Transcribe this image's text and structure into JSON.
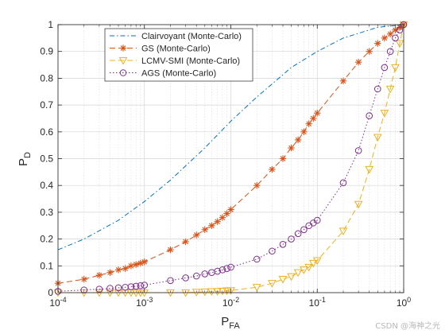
{
  "chart_data": {
    "type": "line",
    "xscale": "log",
    "xlim": [
      0.0001,
      1
    ],
    "ylim": [
      0,
      1
    ],
    "grid": true,
    "legend_position": "top-left",
    "xlabel_main": "P",
    "xlabel_sub": "FA",
    "ylabel_main": "P",
    "ylabel_sub": "D",
    "x_ticks": [
      {
        "value": 0.0001,
        "base": "10",
        "exp": "-4"
      },
      {
        "value": 0.001,
        "base": "10",
        "exp": "-3"
      },
      {
        "value": 0.01,
        "base": "10",
        "exp": "-2"
      },
      {
        "value": 0.1,
        "base": "10",
        "exp": "-1"
      },
      {
        "value": 1,
        "base": "10",
        "exp": "0"
      }
    ],
    "y_ticks": [
      "0",
      "0.1",
      "0.2",
      "0.3",
      "0.4",
      "0.5",
      "0.6",
      "0.7",
      "0.8",
      "0.9",
      "1"
    ],
    "series": [
      {
        "name": "Clairvoyant (Monte-Carlo)",
        "color": "#0072BD",
        "dash": "dashdot",
        "marker": "none",
        "x": [
          0.0001,
          0.0002,
          0.0005,
          0.001,
          0.002,
          0.005,
          0.01,
          0.02,
          0.05,
          0.1,
          0.2,
          0.5,
          1
        ],
        "y": [
          0.16,
          0.2,
          0.27,
          0.34,
          0.42,
          0.54,
          0.64,
          0.73,
          0.84,
          0.9,
          0.95,
          0.99,
          1.0
        ]
      },
      {
        "name": "GS (Monte-Carlo)",
        "color": "#D95319",
        "dash": "dashed",
        "marker": "asterisk",
        "x": [
          0.0001,
          0.0002,
          0.0003,
          0.0004,
          0.0005,
          0.0006,
          0.0007,
          0.0008,
          0.0009,
          0.001,
          0.002,
          0.003,
          0.004,
          0.005,
          0.006,
          0.007,
          0.008,
          0.009,
          0.01,
          0.02,
          0.03,
          0.04,
          0.05,
          0.06,
          0.07,
          0.08,
          0.09,
          0.1,
          0.2,
          0.3,
          0.4,
          0.5,
          0.6,
          0.7,
          0.8,
          0.9,
          1
        ],
        "y": [
          0.035,
          0.05,
          0.065,
          0.075,
          0.085,
          0.09,
          0.1,
          0.105,
          0.11,
          0.115,
          0.16,
          0.19,
          0.215,
          0.235,
          0.25,
          0.265,
          0.28,
          0.295,
          0.31,
          0.4,
          0.46,
          0.5,
          0.54,
          0.57,
          0.6,
          0.63,
          0.65,
          0.67,
          0.79,
          0.86,
          0.9,
          0.93,
          0.95,
          0.965,
          0.98,
          0.99,
          1.0
        ]
      },
      {
        "name": "LCMV-SMI (Monte-Carlo)",
        "color": "#EDB120",
        "dash": "dashed",
        "marker": "triangle-down",
        "x": [
          0.0001,
          0.0002,
          0.0003,
          0.0004,
          0.0005,
          0.0006,
          0.0007,
          0.0008,
          0.0009,
          0.001,
          0.002,
          0.003,
          0.004,
          0.005,
          0.006,
          0.007,
          0.008,
          0.009,
          0.01,
          0.02,
          0.03,
          0.04,
          0.05,
          0.06,
          0.07,
          0.08,
          0.09,
          0.1,
          0.2,
          0.3,
          0.4,
          0.5,
          0.6,
          0.7,
          0.8,
          0.9,
          1
        ],
        "y": [
          0.0,
          0.0,
          0.0,
          0.0,
          0.0,
          0.0,
          0.0,
          0.0,
          0.0,
          0.0,
          0.0,
          0.0,
          0.002,
          0.003,
          0.004,
          0.005,
          0.006,
          0.007,
          0.008,
          0.02,
          0.035,
          0.05,
          0.06,
          0.075,
          0.085,
          0.095,
          0.11,
          0.12,
          0.23,
          0.33,
          0.46,
          0.58,
          0.67,
          0.76,
          0.84,
          0.93,
          1.0
        ]
      },
      {
        "name": "AGS (Monte-Carlo)",
        "color": "#7E2F8E",
        "dash": "dotted",
        "marker": "circle",
        "x": [
          0.0001,
          0.0002,
          0.0003,
          0.0004,
          0.0005,
          0.0006,
          0.0007,
          0.0008,
          0.0009,
          0.001,
          0.002,
          0.003,
          0.004,
          0.005,
          0.006,
          0.007,
          0.008,
          0.009,
          0.01,
          0.02,
          0.03,
          0.04,
          0.05,
          0.06,
          0.07,
          0.08,
          0.09,
          0.1,
          0.2,
          0.3,
          0.4,
          0.5,
          0.6,
          0.7,
          0.8,
          0.9,
          1
        ],
        "y": [
          0.005,
          0.01,
          0.013,
          0.016,
          0.018,
          0.02,
          0.022,
          0.024,
          0.026,
          0.028,
          0.045,
          0.055,
          0.062,
          0.07,
          0.075,
          0.08,
          0.085,
          0.09,
          0.095,
          0.125,
          0.155,
          0.18,
          0.2,
          0.22,
          0.235,
          0.25,
          0.26,
          0.27,
          0.41,
          0.53,
          0.66,
          0.76,
          0.84,
          0.9,
          0.95,
          0.98,
          1.0
        ]
      }
    ]
  },
  "watermark": "CSDN @海神之光"
}
